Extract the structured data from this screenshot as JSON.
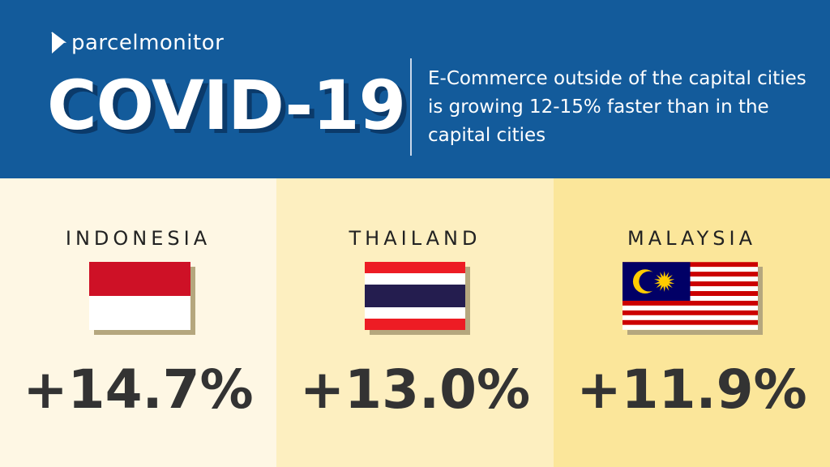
{
  "header": {
    "logo_text": "parcelmonitor",
    "title": "COVID-19",
    "subtitle": "E-Commerce outside of the capital cities is growing 12-15% faster than in the capital cities",
    "background": "#135b9b"
  },
  "countries": [
    {
      "name": "INDONESIA",
      "growth": "+14.7%",
      "background": "#fef7e4",
      "flag_icon": "indonesia-flag"
    },
    {
      "name": "THAILAND",
      "growth": "+13.0%",
      "background": "#fdefc0",
      "flag_icon": "thailand-flag"
    },
    {
      "name": "MALAYSIA",
      "growth": "+11.9%",
      "background": "#fbe69a",
      "flag_icon": "malaysia-flag"
    }
  ]
}
